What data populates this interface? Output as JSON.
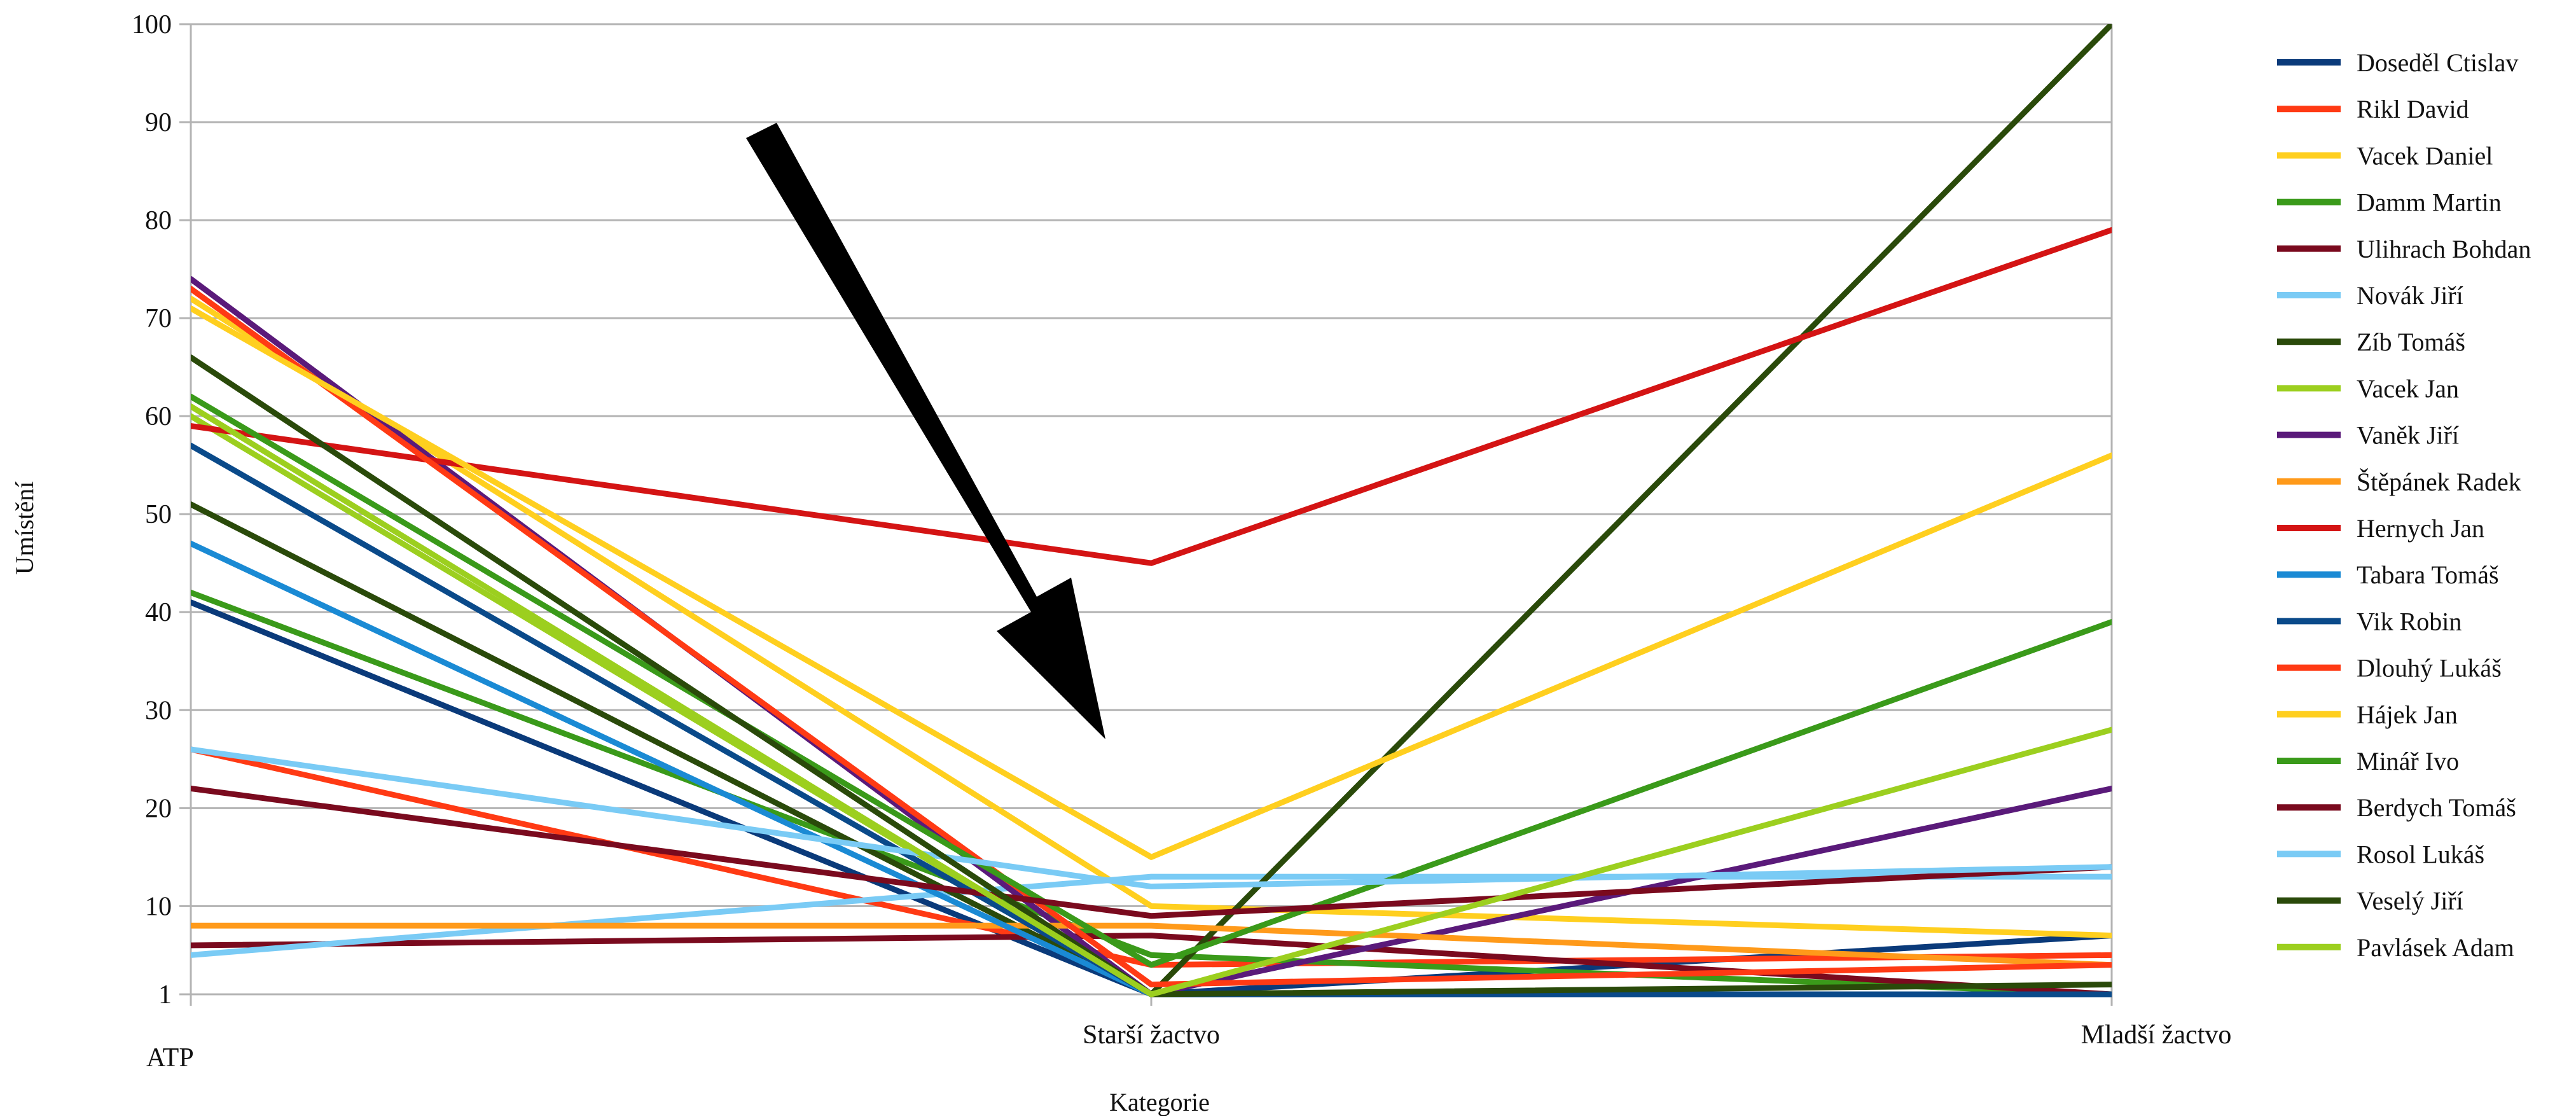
{
  "chart_data": {
    "type": "line",
    "title": "",
    "xlabel": "Kategorie",
    "ylabel": "Umístění",
    "categories": [
      "ATP",
      "Starší žactvo",
      "Mladší žactvo"
    ],
    "y_tick_labels": [
      "1",
      "10",
      "20",
      "30",
      "40",
      "50",
      "60",
      "70",
      "80",
      "90",
      "100"
    ],
    "ylim": [
      1,
      100
    ],
    "grid": true,
    "legend_position": "right",
    "annotation": "black arrow pointing down toward Starší žactvo",
    "series": [
      {
        "name": "Doseděl Ctislav",
        "color": "#0a3a7a",
        "values": [
          41,
          1,
          7
        ]
      },
      {
        "name": "Rikl David",
        "color": "#ff3a14",
        "values": [
          26,
          4,
          5
        ]
      },
      {
        "name": "Vacek Daniel",
        "color": "#ffcf1f",
        "values": [
          72,
          10,
          7
        ]
      },
      {
        "name": "Damm Martin",
        "color": "#3a9a1a",
        "values": [
          42,
          5,
          1
        ]
      },
      {
        "name": "Ulihrach Bohdan",
        "color": "#7a0a1e",
        "values": [
          6,
          7,
          1
        ]
      },
      {
        "name": "Novák Jiří",
        "color": "#7acbf5",
        "values": [
          5,
          13,
          13
        ]
      },
      {
        "name": "Zíb Tomáš",
        "color": "#2a4a0a",
        "values": [
          51,
          1,
          100
        ]
      },
      {
        "name": "Vacek Jan",
        "color": "#9ccf1f",
        "values": [
          60,
          1,
          1
        ]
      },
      {
        "name": "Vaněk Jiří",
        "color": "#5a1a7a",
        "values": [
          74,
          1,
          22
        ]
      },
      {
        "name": "Štěpánek Radek",
        "color": "#ff9a1a",
        "values": [
          8,
          8,
          4
        ]
      },
      {
        "name": "Hernych Jan",
        "color": "#d41414",
        "values": [
          59,
          45,
          79
        ]
      },
      {
        "name": "Tabara Tomáš",
        "color": "#1a8ad4",
        "values": [
          47,
          1,
          1
        ]
      },
      {
        "name": "Vik Robin",
        "color": "#0a4a8a",
        "values": [
          57,
          1,
          1
        ]
      },
      {
        "name": "Dlouhý Lukáš",
        "color": "#ff3a14",
        "values": [
          73,
          2,
          4
        ]
      },
      {
        "name": "Hájek Jan",
        "color": "#ffcf1f",
        "values": [
          71,
          15,
          56
        ]
      },
      {
        "name": "Minář Ivo",
        "color": "#3a9a1a",
        "values": [
          62,
          4,
          39
        ]
      },
      {
        "name": "Berdych Tomáš",
        "color": "#7a0a1e",
        "values": [
          22,
          9,
          14
        ]
      },
      {
        "name": "Rosol Lukáš",
        "color": "#7acbf5",
        "values": [
          26,
          12,
          14
        ]
      },
      {
        "name": "Veselý Jiří",
        "color": "#2a4a0a",
        "values": [
          66,
          1,
          2
        ]
      },
      {
        "name": "Pavlásek Adam",
        "color": "#9ccf1f",
        "values": [
          61,
          1,
          28
        ]
      }
    ]
  }
}
